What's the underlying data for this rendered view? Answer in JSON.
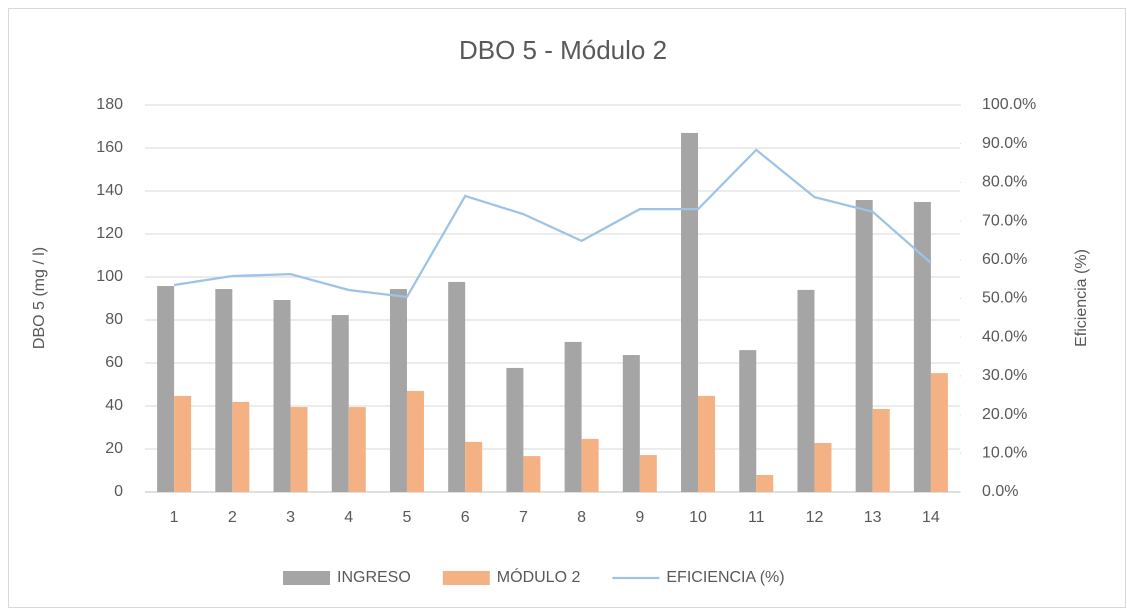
{
  "chart_data": {
    "type": "bar",
    "title": "DBO 5 - Módulo 2",
    "ylabel": "DBO 5  (mg / l)",
    "y2label": "Eficiencia (%)",
    "categories": [
      "1",
      "2",
      "3",
      "4",
      "5",
      "6",
      "7",
      "8",
      "9",
      "10",
      "11",
      "12",
      "13",
      "14"
    ],
    "series": [
      {
        "name": "INGRESO",
        "type": "bar",
        "color": "#a5a5a5",
        "values": [
          95.8,
          94.4,
          89.3,
          82.3,
          94.4,
          97.7,
          57.7,
          69.8,
          63.7,
          167,
          66,
          94,
          135.8,
          134.9
        ]
      },
      {
        "name": "MÓDULO 2",
        "type": "bar",
        "color": "#f4b183",
        "values": [
          44.7,
          41.9,
          39.5,
          39.5,
          47,
          23.3,
          16.7,
          24.7,
          17.2,
          44.7,
          7.9,
          22.8,
          38.6,
          55.3
        ]
      },
      {
        "name": "EFICIENCIA (%)",
        "type": "line",
        "axis": "y2",
        "color": "#9dc3e6",
        "values": [
          53.5,
          55.8,
          56.3,
          52.2,
          50.4,
          76.5,
          71.8,
          64.9,
          73.1,
          73.1,
          88.4,
          76.2,
          72.4,
          59.2
        ]
      }
    ],
    "ylim": [
      0,
      180
    ],
    "yticks": [
      0,
      20,
      40,
      60,
      80,
      100,
      120,
      140,
      160,
      180
    ],
    "y2lim": [
      0,
      100
    ],
    "y2ticks": [
      {
        "value": 0,
        "label": "0.0%"
      },
      {
        "value": 10,
        "label": "10.0%"
      },
      {
        "value": 20,
        "label": "20.0%"
      },
      {
        "value": 30,
        "label": "30.0%"
      },
      {
        "value": 40,
        "label": "40.0%"
      },
      {
        "value": 50,
        "label": "50.0%"
      },
      {
        "value": 60,
        "label": "60.0%"
      },
      {
        "value": 70,
        "label": "70.0%"
      },
      {
        "value": 80,
        "label": "80.0%"
      },
      {
        "value": 90,
        "label": "90.0%"
      },
      {
        "value": 100,
        "label": "100.0%"
      }
    ],
    "grid": true,
    "legend": "bottom"
  }
}
